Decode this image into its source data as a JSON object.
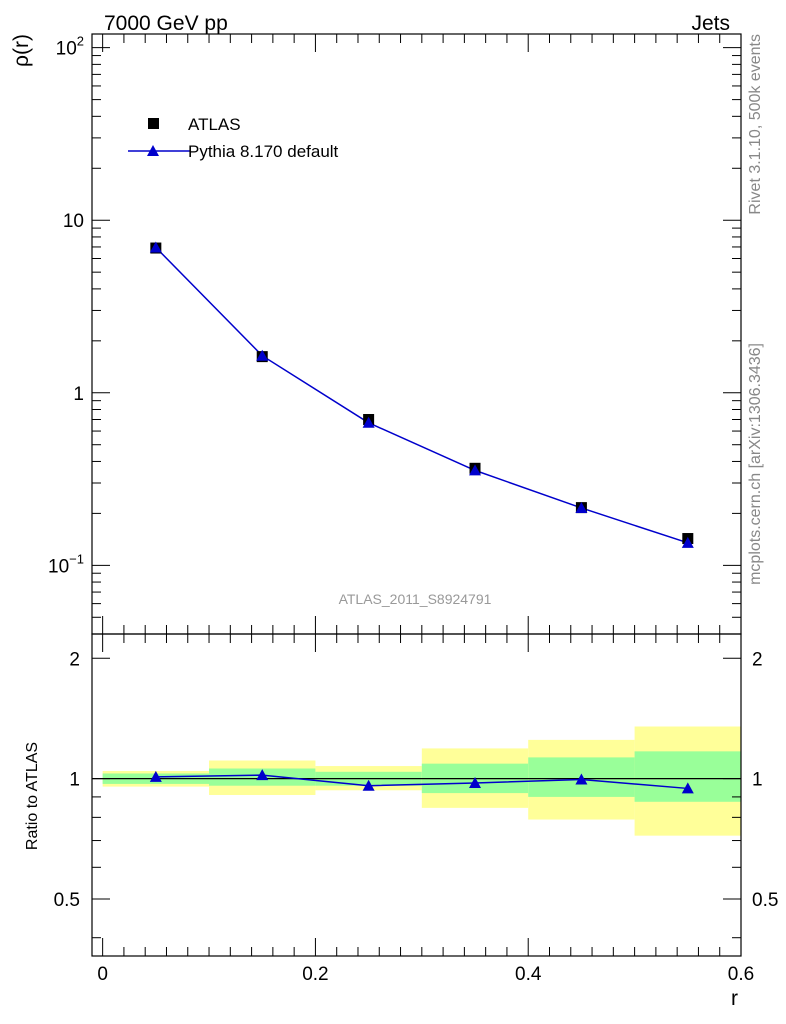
{
  "header": {
    "left": "7000 GeV pp",
    "right": "Jets"
  },
  "side_text": {
    "rivet": "Rivet 3.1.10,  500k events",
    "source": "mcplots.cern.ch [arXiv:1306.3436]"
  },
  "watermark": "ATLAS_2011_S8924791",
  "chart_data": [
    {
      "type": "scatter",
      "panel": "main",
      "ylabel": "ρ(r)",
      "yscale": "log",
      "ylim": [
        0.04,
        120
      ],
      "xlim": [
        -0.01,
        0.6
      ],
      "yticks": [
        {
          "value": 0.1,
          "base": "10",
          "exp": "−1"
        },
        {
          "value": 1,
          "label": "1"
        },
        {
          "value": 10,
          "label": "10"
        },
        {
          "value": 100,
          "base": "10",
          "exp": "2"
        }
      ],
      "legend_position": "top-left",
      "series": [
        {
          "name": "ATLAS",
          "marker": "square",
          "color": "#000000",
          "x": [
            0.05,
            0.15,
            0.25,
            0.35,
            0.45,
            0.55
          ],
          "y": [
            6.9,
            1.62,
            0.7,
            0.365,
            0.216,
            0.143
          ]
        },
        {
          "name": "Pythia 8.170 default",
          "marker": "triangle",
          "line": true,
          "color": "#0000cc",
          "x": [
            0.05,
            0.15,
            0.25,
            0.35,
            0.45,
            0.55
          ],
          "y": [
            6.95,
            1.64,
            0.67,
            0.355,
            0.215,
            0.135
          ]
        }
      ]
    },
    {
      "type": "line",
      "panel": "ratio",
      "ylabel": "Ratio to ATLAS",
      "xlabel": "r",
      "ylim": [
        0.36,
        2.3
      ],
      "xlim": [
        -0.01,
        0.6
      ],
      "yticks": [
        {
          "value": 0.5,
          "label": "0.5"
        },
        {
          "value": 1,
          "label": "1"
        },
        {
          "value": 2,
          "label": "2"
        }
      ],
      "xticks": [
        {
          "value": 0,
          "label": "0"
        },
        {
          "value": 0.2,
          "label": "0.2"
        },
        {
          "value": 0.4,
          "label": "0.4"
        },
        {
          "value": 0.6,
          "label": "0.6"
        }
      ],
      "reference_line": 1,
      "bands": [
        {
          "x0": 0.0,
          "x1": 0.1,
          "stat": [
            0.97,
            1.03
          ],
          "total": [
            0.955,
            1.045
          ]
        },
        {
          "x0": 0.1,
          "x1": 0.2,
          "stat": [
            0.96,
            1.06
          ],
          "total": [
            0.91,
            1.11
          ]
        },
        {
          "x0": 0.2,
          "x1": 0.3,
          "stat": [
            0.96,
            1.04
          ],
          "total": [
            0.935,
            1.075
          ]
        },
        {
          "x0": 0.3,
          "x1": 0.4,
          "stat": [
            0.92,
            1.09
          ],
          "total": [
            0.845,
            1.19
          ]
        },
        {
          "x0": 0.4,
          "x1": 0.5,
          "stat": [
            0.9,
            1.13
          ],
          "total": [
            0.79,
            1.25
          ]
        },
        {
          "x0": 0.5,
          "x1": 0.6,
          "stat": [
            0.875,
            1.17
          ],
          "total": [
            0.72,
            1.35
          ]
        }
      ],
      "band_colors": {
        "stat": "#99ff99",
        "total": "#ffff99"
      },
      "series": [
        {
          "name": "Pythia 8.170 default",
          "marker": "triangle",
          "color": "#0000cc",
          "x": [
            0.05,
            0.15,
            0.25,
            0.35,
            0.45,
            0.55
          ],
          "y": [
            1.01,
            1.02,
            0.96,
            0.975,
            0.995,
            0.945
          ]
        }
      ]
    }
  ]
}
